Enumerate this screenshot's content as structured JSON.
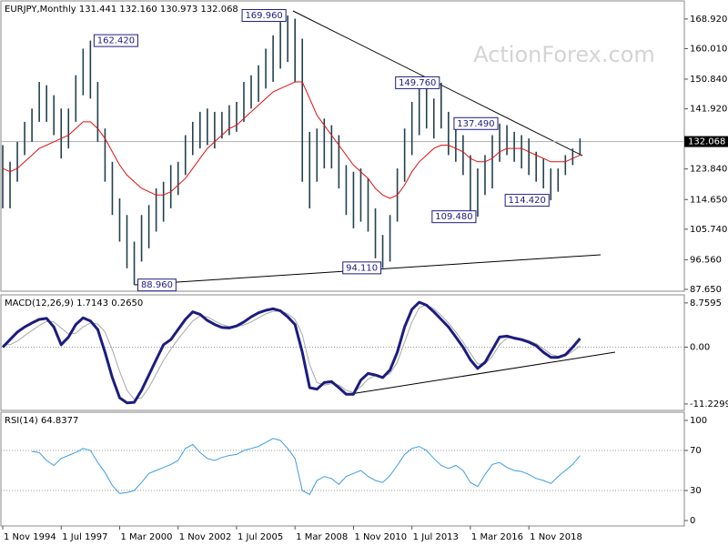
{
  "chart_data": [
    {
      "type": "ohlc",
      "title": "EURJPY,Monthly  131.441 132.160 130.973 132.068",
      "watermark": "ActionForex.com",
      "color": "#23404e",
      "high": {
        "values": [
          131,
          126,
          132,
          138,
          142,
          150,
          149,
          146,
          142,
          142,
          152,
          160,
          162.42,
          150,
          136,
          126,
          115,
          110,
          102,
          110,
          113,
          118,
          120,
          125,
          126,
          134,
          138,
          141,
          142,
          141,
          141,
          143,
          144,
          150,
          152,
          155,
          160,
          164,
          168,
          169.96,
          169,
          163,
          135,
          136,
          139,
          137,
          134,
          125,
          123,
          124,
          121,
          112,
          104,
          110,
          124,
          136,
          144,
          150,
          149,
          145,
          149.76,
          141,
          137,
          134,
          128,
          124,
          128,
          134,
          137.49,
          137,
          135,
          134,
          133,
          129,
          127,
          124,
          124,
          128,
          130,
          133
        ],
        "value_labels": [
          null,
          null,
          null,
          null,
          null,
          null,
          null,
          null,
          null,
          null,
          null,
          null,
          "162.420",
          null,
          null,
          null,
          null,
          null,
          null,
          null,
          null,
          null,
          null,
          null,
          null,
          null,
          null,
          null,
          null,
          null,
          null,
          null,
          null,
          null,
          null,
          null,
          null,
          null,
          null,
          "169.960",
          null,
          null,
          null,
          null,
          null,
          null,
          null,
          null,
          null,
          null,
          null,
          null,
          null,
          null,
          null,
          null,
          null,
          null,
          null,
          null,
          "149.760",
          null,
          null,
          null,
          null,
          null,
          null,
          null,
          "137.490",
          null,
          null,
          null,
          null,
          null,
          null,
          null,
          null,
          null,
          null,
          null
        ]
      },
      "low": {
        "values": [
          112,
          112,
          120,
          128,
          132,
          138,
          138,
          134,
          127,
          130,
          138,
          146,
          145,
          132,
          120,
          110,
          102,
          94,
          88.96,
          96,
          100,
          105,
          108,
          112,
          116,
          122,
          128,
          130,
          131,
          130,
          133,
          134,
          135,
          138,
          142,
          144,
          148,
          150,
          154,
          156,
          150,
          120,
          112,
          120,
          124,
          124,
          118,
          110,
          106,
          108,
          105,
          97,
          94.11,
          96,
          108,
          120,
          128,
          134,
          136,
          133,
          136,
          128,
          126,
          122,
          111,
          109.48,
          116,
          118,
          126,
          128,
          126,
          124,
          122,
          120,
          118,
          114.42,
          117,
          122,
          125,
          128
        ],
        "value_labels": [
          null,
          null,
          null,
          null,
          null,
          null,
          null,
          null,
          null,
          null,
          null,
          null,
          null,
          null,
          null,
          null,
          null,
          null,
          "88.960",
          null,
          null,
          null,
          null,
          null,
          null,
          null,
          null,
          null,
          null,
          null,
          null,
          null,
          null,
          null,
          null,
          null,
          null,
          null,
          null,
          null,
          null,
          null,
          null,
          null,
          null,
          null,
          null,
          null,
          null,
          null,
          null,
          null,
          "94.110",
          null,
          null,
          null,
          null,
          null,
          null,
          null,
          null,
          null,
          null,
          null,
          null,
          "109.480",
          null,
          null,
          null,
          null,
          null,
          null,
          null,
          null,
          null,
          "114.420",
          null,
          null,
          null,
          null
        ]
      },
      "ma": {
        "color": "#e01010",
        "values": [
          124,
          123,
          124,
          126,
          128,
          130,
          131,
          132,
          133,
          134,
          136,
          138,
          138,
          136,
          133,
          129,
          125,
          122,
          120,
          118,
          117,
          116,
          116,
          117,
          119,
          121,
          124,
          127,
          130,
          132,
          134,
          136,
          137,
          139,
          141,
          143,
          145,
          147,
          148,
          149,
          150,
          150,
          145,
          140,
          137,
          134,
          131,
          128,
          125,
          123,
          121,
          118,
          116,
          115,
          116,
          119,
          123,
          126,
          128,
          130,
          131,
          131,
          130,
          129,
          127,
          126,
          126,
          127,
          129,
          130,
          130,
          130,
          129,
          128,
          127,
          126,
          126,
          126,
          127,
          128
        ]
      },
      "last": {
        "value": 132.068,
        "label": "132.068"
      },
      "ylim": [
        87.1,
        173.8
      ],
      "yticks": [
        {
          "value": 168.92,
          "label": "168.920"
        },
        {
          "value": 160.01,
          "label": "160.010"
        },
        {
          "value": 150.84,
          "label": "150.840"
        },
        {
          "value": 141.92,
          "label": "141.920"
        },
        {
          "value": 123.84,
          "label": "123.840"
        },
        {
          "value": 114.65,
          "label": "114.650"
        },
        {
          "value": 105.74,
          "label": "105.740"
        },
        {
          "value": 96.56,
          "label": "96.560"
        },
        {
          "value": 87.65,
          "label": "87.650"
        }
      ]
    },
    {
      "type": "macd",
      "title": "MACD(12,26,9) 1.7143 0.2650",
      "series": [
        {
          "color": "#a8a8a8",
          "width": 1,
          "values": [
            0.5,
            0.5,
            1.2,
            2.3,
            3.3,
            4.3,
            5.1,
            5,
            3.8,
            2.6,
            2.8,
            4,
            4.8,
            4.6,
            3,
            -0.5,
            -4.8,
            -8.5,
            -10.3,
            -10,
            -8,
            -5.3,
            -2.6,
            -0.4,
            1.6,
            3.4,
            5.2,
            6.2,
            6,
            5.2,
            4.5,
            4.1,
            4.1,
            4.4,
            5,
            5.8,
            6.6,
            7.1,
            7.2,
            6.6,
            5.5,
            2.5,
            -3.5,
            -7,
            -7.5,
            -7.2,
            -7.5,
            -8.5,
            -9,
            -7.8,
            -6.3,
            -5.6,
            -5.8,
            -5.2,
            -3,
            1,
            5,
            7.8,
            8.4,
            7.6,
            6.3,
            4.8,
            3,
            1,
            -1.2,
            -3.3,
            -3.3,
            -1.8,
            0.5,
            1.8,
            2,
            1.7,
            1.3,
            0.7,
            -0.3,
            -1.4,
            -1.8,
            -1.7,
            -0.8,
            0.265
          ]
        },
        {
          "color": "#1c1c80",
          "width": 3,
          "values": [
            0,
            1.5,
            3,
            4,
            4.8,
            5.5,
            5.7,
            4,
            0.5,
            2,
            4.5,
            5.8,
            5.2,
            3.5,
            -1,
            -6,
            -10,
            -11,
            -10.9,
            -8.5,
            -5.5,
            -2.5,
            0.5,
            1.5,
            3.5,
            5.5,
            7,
            6.5,
            5.3,
            4.5,
            3.9,
            3.8,
            4.2,
            5,
            6,
            6.8,
            7.3,
            7.6,
            7.2,
            6,
            4.5,
            -1,
            -8,
            -8.3,
            -7,
            -6.8,
            -8,
            -9.3,
            -9.3,
            -6.5,
            -5.2,
            -5.5,
            -6,
            -4.5,
            -1,
            4,
            7.5,
            8.9,
            8.3,
            7,
            5.5,
            4,
            2,
            0,
            -2.5,
            -4.2,
            -3,
            -0.5,
            2,
            2.2,
            1.8,
            1.5,
            1,
            0.3,
            -1,
            -2,
            -2,
            -1.5,
            0,
            1.7143
          ]
        }
      ],
      "ylim": [
        -12.5,
        10.0
      ],
      "yticks": [
        8.7595,
        {
          "value": 0,
          "label": "0.00"
        },
        -11.2299
      ],
      "grid": true
    },
    {
      "type": "line",
      "title": "RSI(14) 64.8377",
      "color": "#3d9ee0",
      "categories": [
        "1 Nov 1994",
        null,
        null,
        null,
        null,
        null,
        null,
        null,
        "1 Jul 1997",
        null,
        null,
        null,
        null,
        null,
        null,
        null,
        "1 Mar 2000",
        null,
        null,
        null,
        null,
        null,
        null,
        null,
        "1 Nov 2002",
        null,
        null,
        null,
        null,
        null,
        null,
        null,
        "1 Jul 2005",
        null,
        null,
        null,
        null,
        null,
        null,
        null,
        "1 Mar 2008",
        null,
        null,
        null,
        null,
        null,
        null,
        null,
        "1 Nov 2010",
        null,
        null,
        null,
        null,
        null,
        null,
        null,
        "1 Jul 2013",
        null,
        null,
        null,
        null,
        null,
        null,
        null,
        "1 Mar 2016",
        null,
        null,
        null,
        null,
        null,
        null,
        null,
        "1 Nov 2018",
        null,
        null,
        null,
        null,
        null,
        null,
        null
      ],
      "values": [
        null,
        null,
        null,
        null,
        69,
        68,
        60,
        55,
        62,
        65,
        68,
        72,
        70,
        58,
        48,
        35,
        27,
        28,
        30,
        38,
        47,
        50,
        53,
        56,
        60,
        72,
        76,
        68,
        62,
        60,
        63,
        65,
        66,
        70,
        72,
        74,
        78,
        82,
        80,
        72,
        62,
        30,
        26,
        40,
        44,
        42,
        36,
        44,
        47,
        50,
        44,
        40,
        38,
        45,
        55,
        66,
        72,
        74,
        70,
        62,
        55,
        52,
        55,
        50,
        38,
        34,
        46,
        56,
        58,
        53,
        50,
        49,
        46,
        42,
        40,
        37,
        44,
        50,
        56,
        64.8377
      ],
      "ylim": [
        -5.4,
        106.3
      ],
      "yticks": [
        100,
        70,
        30,
        0
      ],
      "grid": true
    }
  ]
}
